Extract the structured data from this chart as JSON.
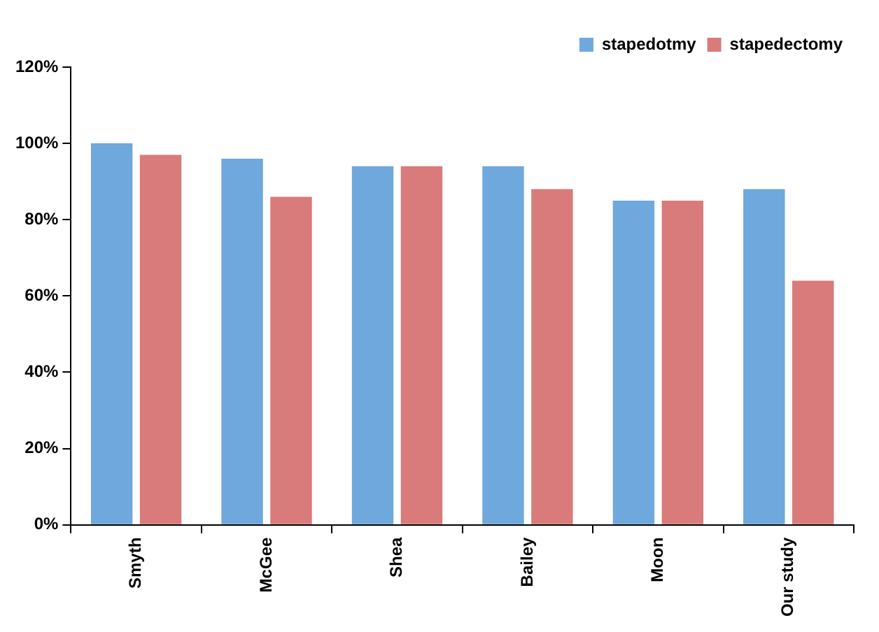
{
  "chart_data": {
    "type": "bar",
    "categories": [
      "Smyth",
      "McGee",
      "Shea",
      "Bailey",
      "Moon",
      "Our study"
    ],
    "series": [
      {
        "name": "stapedotmy",
        "color": "#6fa8dc",
        "values": [
          100,
          96,
          94,
          94,
          85,
          88
        ]
      },
      {
        "name": "stapedectomy",
        "color": "#d97b7b",
        "values": [
          97,
          86,
          94,
          88,
          85,
          64
        ]
      }
    ],
    "ylim": [
      0,
      120
    ],
    "yticks": [
      {
        "value": 0,
        "label": "0%"
      },
      {
        "value": 20,
        "label": "20%"
      },
      {
        "value": 40,
        "label": "40%"
      },
      {
        "value": 60,
        "label": "60%"
      },
      {
        "value": 80,
        "label": "80%"
      },
      {
        "value": 100,
        "label": "100%"
      },
      {
        "value": 120,
        "label": "120%"
      }
    ],
    "grid": false,
    "legend": "top right"
  }
}
